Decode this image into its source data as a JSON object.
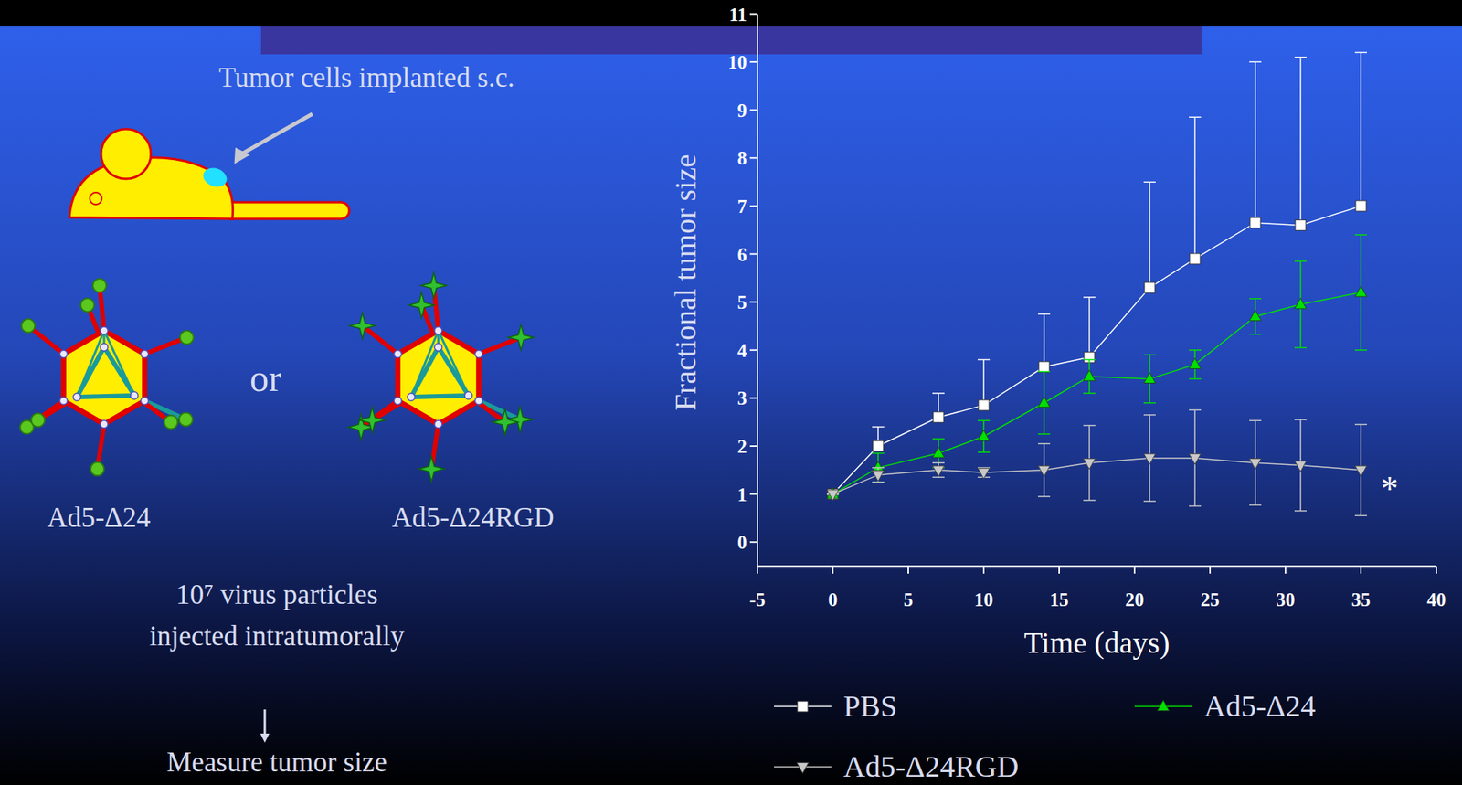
{
  "chart_data": {
    "type": "line",
    "x_label": "Time (days)",
    "y_label": "Fractional tumor size",
    "x": [
      0,
      3,
      7,
      10,
      14,
      17,
      21,
      24,
      28,
      31,
      35
    ],
    "xlim": [
      -5,
      40
    ],
    "xticks": [
      -5,
      0,
      5,
      10,
      15,
      20,
      25,
      30,
      35,
      40
    ],
    "ylim": [
      -0.5,
      11
    ],
    "yticks": [
      0,
      1,
      2,
      3,
      4,
      5,
      6,
      7,
      8,
      9,
      10,
      11
    ],
    "legend": "bottom",
    "grid": false,
    "series": [
      {
        "name": "PBS",
        "color": "#ffffff",
        "marker": "square",
        "values": [
          1,
          2.0,
          2.6,
          2.85,
          3.65,
          3.85,
          5.3,
          5.9,
          6.65,
          6.6,
          7.0
        ],
        "errors_plus": [
          0,
          0.4,
          0.5,
          0.95,
          1.1,
          1.25,
          2.2,
          2.95,
          3.35,
          3.5,
          3.2
        ]
      },
      {
        "name": "Ad5-Δ24",
        "color": "#00e000",
        "marker": "triangle-up",
        "values": [
          1,
          1.55,
          1.85,
          2.2,
          2.9,
          3.45,
          3.4,
          3.7,
          4.7,
          4.95,
          5.2
        ],
        "errors_plus": [
          0,
          0.3,
          0.3,
          0.33,
          0.65,
          0.35,
          0.5,
          0.3,
          0.37,
          0.9,
          1.2
        ],
        "errors_minus": [
          0,
          0.3,
          0.3,
          0.33,
          0.65,
          0.35,
          0.5,
          0.3,
          0.37,
          0.9,
          1.2
        ]
      },
      {
        "name": "Ad5-Δ24RGD",
        "color": "#c8c8c8",
        "marker": "triangle-down",
        "values": [
          1,
          1.4,
          1.5,
          1.45,
          1.5,
          1.65,
          1.75,
          1.75,
          1.65,
          1.6,
          1.5
        ],
        "errors_plus": [
          0,
          0.15,
          0.15,
          0.1,
          0.55,
          0.78,
          0.9,
          1.0,
          0.88,
          0.95,
          0.95
        ],
        "errors_minus": [
          0,
          0.15,
          0.15,
          0.1,
          0.55,
          0.78,
          0.9,
          1.0,
          0.88,
          0.95,
          0.95
        ]
      }
    ],
    "annotations": [
      "*"
    ]
  },
  "diagram": {
    "caption_top": "Tumor cells implanted s.c.",
    "viruses": [
      "Ad5-Δ24",
      "Ad5-Δ24RGD"
    ],
    "connector": "or",
    "dose": [
      "10⁷ virus particles",
      "injected intratumorally"
    ],
    "readout": "Measure tumor size"
  }
}
